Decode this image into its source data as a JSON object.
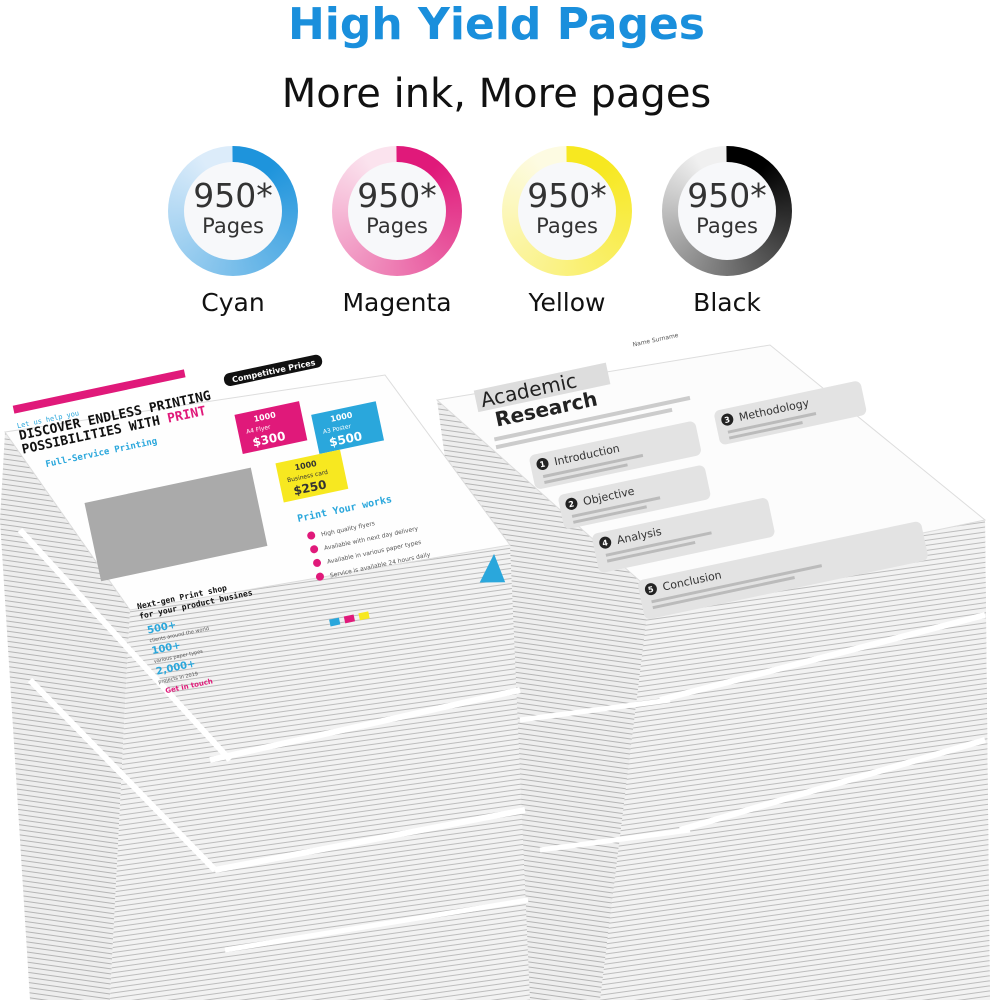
{
  "header": {
    "title": "High Yield Pages",
    "subtitle": "More ink, More pages"
  },
  "yields": [
    {
      "value": "950*",
      "unit": "Pages",
      "label": "Cyan",
      "color": "#1e94dc",
      "light": "#dcecfa"
    },
    {
      "value": "950*",
      "unit": "Pages",
      "label": "Magenta",
      "color": "#e0197a",
      "light": "#fbe3ee"
    },
    {
      "value": "950*",
      "unit": "Pages",
      "label": "Yellow",
      "color": "#f7e820",
      "light": "#fdfbe2"
    },
    {
      "value": "950*",
      "unit": "Pages",
      "label": "Black",
      "color": "#000000",
      "light": "#f0f0f0"
    }
  ],
  "flyer": {
    "tagline": "Let us help you",
    "headline1": "DISCOVER ENDLESS PRINTING",
    "headline2": "POSSIBILITIES WITH",
    "headline_accent": "PRINT",
    "service": "Full-Service Printing",
    "badge": "Competitive Prices",
    "prices": [
      {
        "qty": "1000",
        "item": "A4 Flyer",
        "price": "$300",
        "color": "#e0197a"
      },
      {
        "qty": "1000",
        "item": "A3 Poster",
        "price": "$500",
        "color": "#2aa7dc"
      },
      {
        "qty": "1000",
        "item": "Business card",
        "price": "$250",
        "color": "#f7e820"
      }
    ],
    "works_title": "Print Your works",
    "features": [
      "High quality flyers",
      "Available with next day delivery",
      "Available in various paper types",
      "Service is available 24 hours daily"
    ],
    "shop_title1": "Next-gen Print shop",
    "shop_title2": "for your product busines",
    "stats": [
      {
        "value": "500+",
        "label": "clients around the world"
      },
      {
        "value": "100+",
        "label": "various paper types"
      },
      {
        "value": "2,000+",
        "label": "projects in 2019"
      }
    ],
    "contact": "Get in touch"
  },
  "research": {
    "title1": "Academic",
    "title2": "Research",
    "author": "Name Surname",
    "sections": [
      {
        "num": "1",
        "title": "Introduction"
      },
      {
        "num": "2",
        "title": "Objective"
      },
      {
        "num": "3",
        "title": "Methodology"
      },
      {
        "num": "4",
        "title": "Analysis"
      },
      {
        "num": "5",
        "title": "Conclusion"
      }
    ]
  }
}
